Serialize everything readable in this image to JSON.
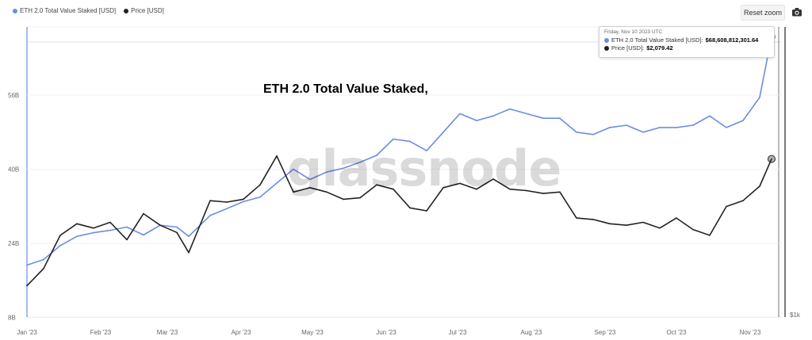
{
  "legend": {
    "items": [
      {
        "label": "ETH 2.0 Total Value Staked [USD]",
        "color": "#6b8de3"
      },
      {
        "label": "Price [USD]",
        "color": "#222222"
      }
    ]
  },
  "toolbar": {
    "reset_zoom_label": "Reset zoom",
    "camera_icon": "camera-icon"
  },
  "watermark": "glassnode",
  "tooltip": {
    "date": "Friday, Nov 10 2023 UTC",
    "rows": [
      {
        "label": "ETH 2.0 Total Value Staked [USD]:",
        "value": "$68,608,812,301.64",
        "color": "#6b8de3"
      },
      {
        "label": "Price [USD]:",
        "value": "$2,079.42",
        "color": "#222222"
      }
    ]
  },
  "chart_data": {
    "type": "line",
    "title": "ETH 2.0 Total Value Staked,",
    "x_ticks": [
      "Jan '23",
      "Feb '23",
      "Mar '23",
      "Apr '23",
      "May '23",
      "Jun '23",
      "Jul '23",
      "Aug '23",
      "Sep '23",
      "Oct '23",
      "Nov '23"
    ],
    "y_left": {
      "ticks": [
        "8B",
        "24B",
        "40B",
        "56B"
      ],
      "tick_values": [
        8,
        24,
        40,
        56
      ],
      "unit": "B USD"
    },
    "y_right": {
      "ticks": [
        "$1k"
      ],
      "tick_values": [
        1000
      ]
    },
    "grid": true,
    "legend_position": "top-left",
    "series": [
      {
        "name": "ETH 2.0 Total Value Staked [USD]",
        "color": "#6b8de3",
        "axis": "left",
        "x": [
          "2023-01-01",
          "2023-01-08",
          "2023-01-15",
          "2023-01-22",
          "2023-01-29",
          "2023-02-05",
          "2023-02-12",
          "2023-02-19",
          "2023-02-26",
          "2023-03-05",
          "2023-03-10",
          "2023-03-19",
          "2023-03-26",
          "2023-04-02",
          "2023-04-09",
          "2023-04-16",
          "2023-04-23",
          "2023-04-30",
          "2023-05-07",
          "2023-05-14",
          "2023-05-21",
          "2023-05-28",
          "2023-06-04",
          "2023-06-11",
          "2023-06-18",
          "2023-06-25",
          "2023-07-02",
          "2023-07-09",
          "2023-07-16",
          "2023-07-23",
          "2023-07-30",
          "2023-08-06",
          "2023-08-13",
          "2023-08-20",
          "2023-08-27",
          "2023-09-03",
          "2023-09-10",
          "2023-09-17",
          "2023-09-24",
          "2023-10-01",
          "2023-10-08",
          "2023-10-15",
          "2023-10-22",
          "2023-10-29",
          "2023-11-05",
          "2023-11-10"
        ],
        "values": [
          19.3,
          20.5,
          23.5,
          25.5,
          26.3,
          26.8,
          27.5,
          25.8,
          27.9,
          27.5,
          25.5,
          30.0,
          31.5,
          33.0,
          34.0,
          37.0,
          40.0,
          37.8,
          39.4,
          40.2,
          41.5,
          43.0,
          46.5,
          46.0,
          44.0,
          48.0,
          52.0,
          50.5,
          51.5,
          53.0,
          52.0,
          51.0,
          51.0,
          48.0,
          47.5,
          49.0,
          49.5,
          48.0,
          49.0,
          49.0,
          49.5,
          51.5,
          49.0,
          50.5,
          55.5,
          68.6
        ]
      },
      {
        "name": "Price [USD]",
        "color": "#222222",
        "axis": "right",
        "x": [
          "2023-01-01",
          "2023-01-08",
          "2023-01-15",
          "2023-01-22",
          "2023-01-29",
          "2023-02-05",
          "2023-02-12",
          "2023-02-19",
          "2023-02-26",
          "2023-03-05",
          "2023-03-10",
          "2023-03-19",
          "2023-03-26",
          "2023-04-02",
          "2023-04-09",
          "2023-04-16",
          "2023-04-23",
          "2023-04-30",
          "2023-05-07",
          "2023-05-14",
          "2023-05-21",
          "2023-05-28",
          "2023-06-04",
          "2023-06-11",
          "2023-06-18",
          "2023-06-25",
          "2023-07-02",
          "2023-07-09",
          "2023-07-16",
          "2023-07-23",
          "2023-07-30",
          "2023-08-06",
          "2023-08-13",
          "2023-08-20",
          "2023-08-27",
          "2023-09-03",
          "2023-09-10",
          "2023-09-17",
          "2023-09-24",
          "2023-10-01",
          "2023-10-08",
          "2023-10-15",
          "2023-10-22",
          "2023-10-29",
          "2023-11-05",
          "2023-11-10"
        ],
        "values": [
          1200,
          1320,
          1550,
          1630,
          1600,
          1640,
          1520,
          1700,
          1620,
          1570,
          1430,
          1790,
          1780,
          1800,
          1900,
          2100,
          1850,
          1880,
          1850,
          1800,
          1810,
          1900,
          1870,
          1740,
          1720,
          1880,
          1910,
          1870,
          1940,
          1870,
          1860,
          1840,
          1850,
          1670,
          1660,
          1630,
          1620,
          1640,
          1600,
          1670,
          1590,
          1550,
          1750,
          1790,
          1890,
          2079
        ]
      }
    ]
  }
}
